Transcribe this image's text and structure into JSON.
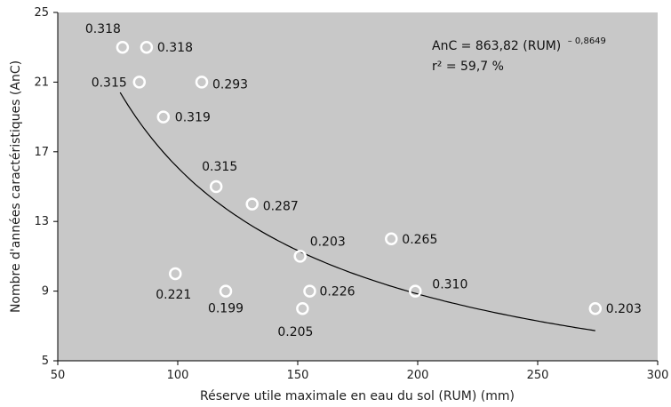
{
  "chart_data": {
    "type": "scatter",
    "xlabel": "Réserve utile maximale en eau du sol (RUM) (mm)",
    "ylabel": "Nombre d'années caractéristiques (AnC)",
    "xlim": [
      50,
      300
    ],
    "ylim": [
      5,
      25
    ],
    "x_ticks": [
      50,
      100,
      150,
      200,
      250,
      300
    ],
    "y_ticks": [
      5,
      9,
      13,
      17,
      21,
      25
    ],
    "grid": false,
    "background": "#c8c8c8",
    "marker_color": "#ffffff",
    "points": [
      {
        "x": 77,
        "y": 23,
        "label": "0.318"
      },
      {
        "x": 87,
        "y": 23,
        "label": "0.318"
      },
      {
        "x": 84,
        "y": 21,
        "label": "0.315"
      },
      {
        "x": 110,
        "y": 21,
        "label": "0.293"
      },
      {
        "x": 94,
        "y": 19,
        "label": "0.319"
      },
      {
        "x": 116,
        "y": 15,
        "label": "0.315"
      },
      {
        "x": 131,
        "y": 14,
        "label": "0.287"
      },
      {
        "x": 151,
        "y": 11,
        "label": "0.203"
      },
      {
        "x": 189,
        "y": 12,
        "label": "0.265"
      },
      {
        "x": 99,
        "y": 10,
        "label": "0.221"
      },
      {
        "x": 120,
        "y": 9,
        "label": "0.199"
      },
      {
        "x": 155,
        "y": 9,
        "label": "0.226"
      },
      {
        "x": 152,
        "y": 8,
        "label": "0.205"
      },
      {
        "x": 199,
        "y": 9,
        "label": "0.310"
      },
      {
        "x": 274,
        "y": 8,
        "label": "0.203"
      }
    ],
    "fit": {
      "type": "power",
      "a": 863.82,
      "b": -0.8649,
      "x_range": [
        76,
        274
      ],
      "color": "#000000"
    },
    "equation": {
      "line1_main": "AnC  = 863,82 (RUM)",
      "line1_sup": "– 0,8649",
      "line2": "r² = 59,7 %"
    }
  }
}
